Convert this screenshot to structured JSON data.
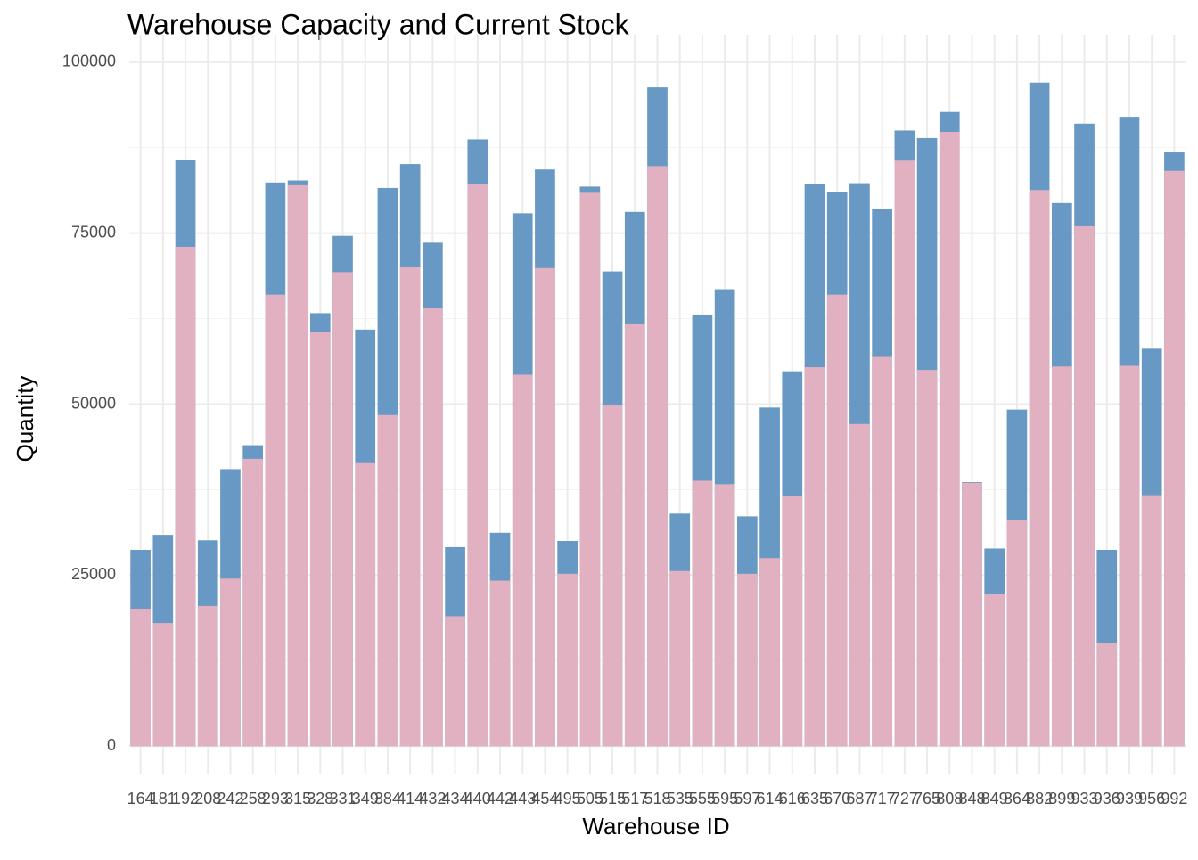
{
  "chart_data": {
    "type": "overlap_bar",
    "title": "Warehouse Capacity and Current Stock",
    "x_label": "Warehouse ID",
    "y_label": "Quantity",
    "categories": [
      "164",
      "181",
      "192",
      "208",
      "242",
      "258",
      "293",
      "315",
      "328",
      "331",
      "349",
      "384",
      "414",
      "432",
      "434",
      "440",
      "442",
      "443",
      "454",
      "495",
      "505",
      "515",
      "517",
      "518",
      "535",
      "555",
      "595",
      "597",
      "614",
      "616",
      "635",
      "670",
      "687",
      "717",
      "727",
      "765",
      "808",
      "848",
      "849",
      "864",
      "882",
      "899",
      "933",
      "936",
      "939",
      "956",
      "992"
    ],
    "series": [
      {
        "color": "#6899c4",
        "values": [
          28700,
          30900,
          85700,
          30100,
          40500,
          44000,
          82400,
          82700,
          63300,
          74600,
          60900,
          81600,
          85100,
          73600,
          29100,
          88700,
          31200,
          77900,
          84300,
          30000,
          81800,
          69400,
          78100,
          96300,
          34000,
          63100,
          66800,
          33600,
          49500,
          54800,
          82200,
          81000,
          82300,
          78600,
          90000,
          88900,
          92700,
          38600,
          28900,
          49200,
          97000,
          79400,
          91000,
          28700,
          92000,
          58100,
          86800
        ]
      },
      {
        "color": "#e2b1c1",
        "values": [
          20100,
          18000,
          73000,
          20500,
          24500,
          42000,
          66000,
          82000,
          60500,
          69300,
          41500,
          48400,
          70000,
          64000,
          19000,
          82200,
          24200,
          54300,
          69900,
          25200,
          80900,
          49800,
          61800,
          84800,
          25600,
          38800,
          38300,
          25200,
          27500,
          36600,
          55400,
          66000,
          47100,
          56900,
          85600,
          55000,
          89800,
          38500,
          22300,
          33100,
          81300,
          55500,
          76000,
          15100,
          55600,
          36700,
          84100
        ]
      }
    ],
    "ylim": [
      -4000,
      104000
    ],
    "yticks": [
      0,
      25000,
      50000,
      75000,
      100000
    ],
    "grid": true
  }
}
